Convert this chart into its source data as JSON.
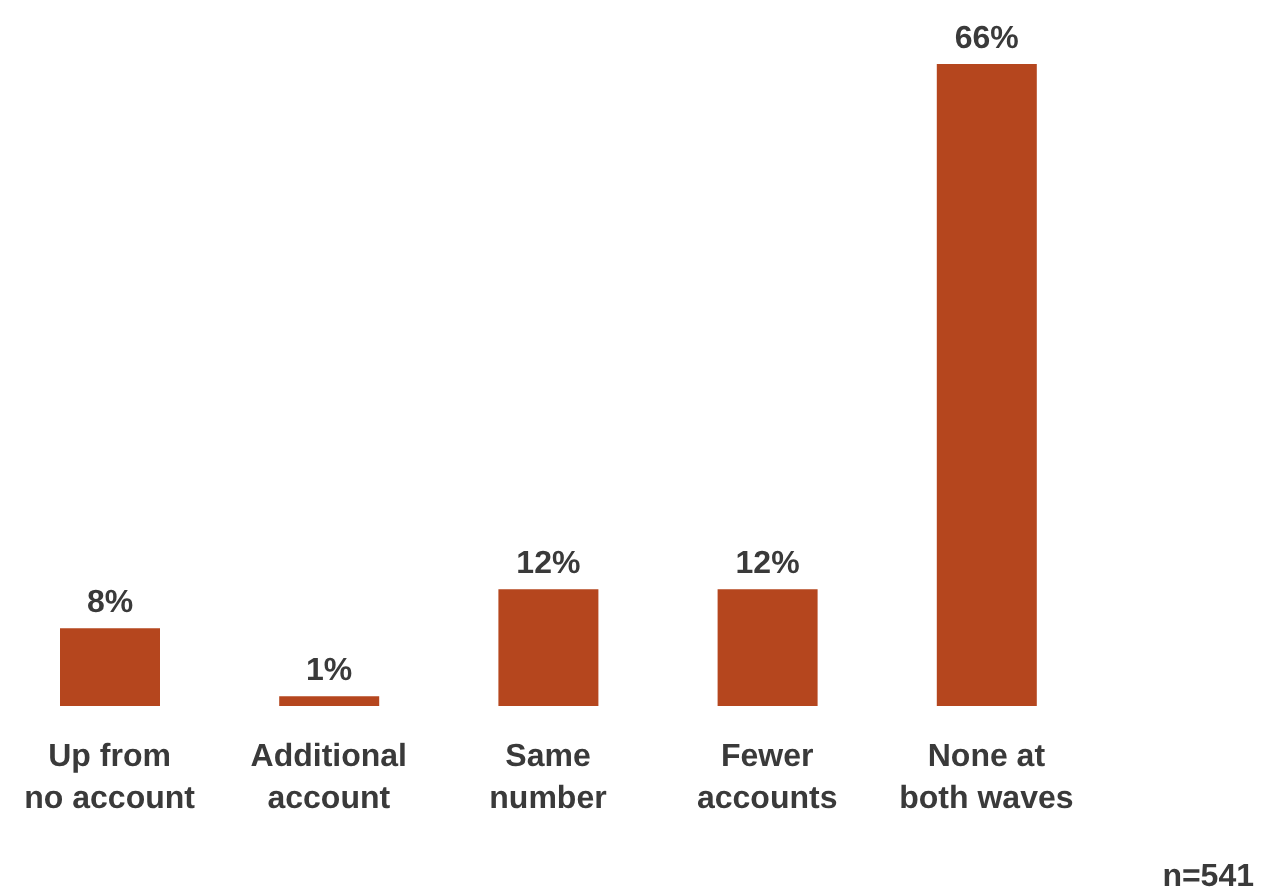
{
  "chart_data": {
    "type": "bar",
    "categories": [
      "Up from no account",
      "Additional account",
      "Same number",
      "Fewer accounts",
      "None at both waves"
    ],
    "values": [
      8,
      1,
      12,
      12,
      66
    ],
    "value_labels": [
      "8%",
      "1%",
      "12%",
      "12%",
      "66%"
    ],
    "color": "#b5461e",
    "annotations": [
      "n=541"
    ]
  }
}
